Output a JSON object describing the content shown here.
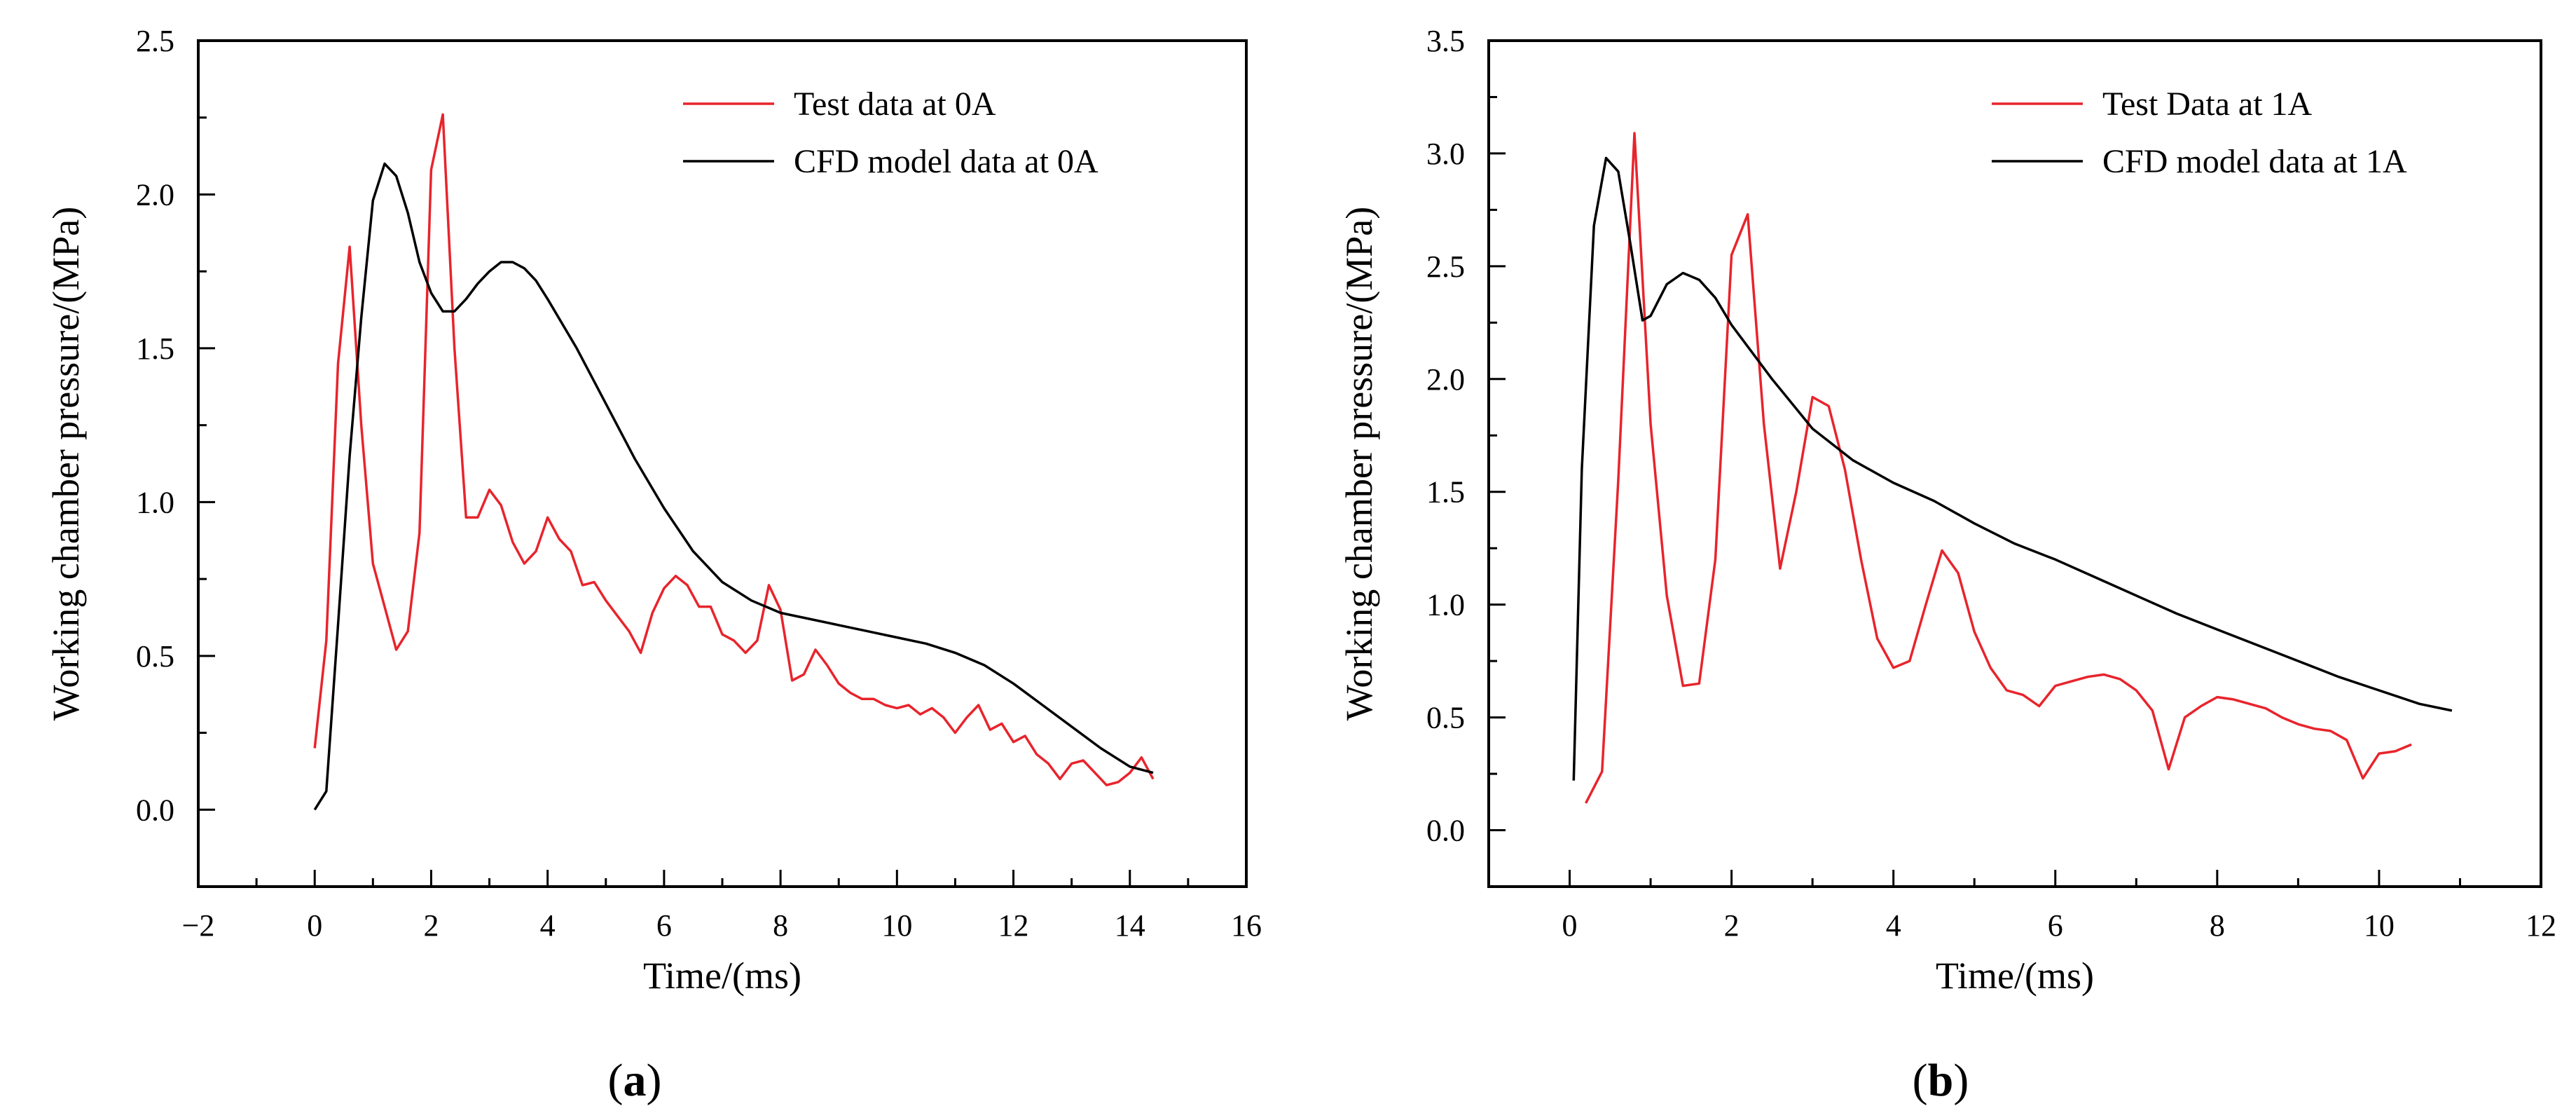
{
  "chart_data": [
    {
      "type": "line",
      "panel_label": "a",
      "xlabel": "Time/(ms)",
      "ylabel": "Working chamber pressure/(MPa)",
      "xlim": [
        -2,
        16
      ],
      "ylim": [
        -0.25,
        2.5
      ],
      "xticks": [
        -2,
        0,
        2,
        4,
        6,
        8,
        10,
        12,
        14,
        16
      ],
      "yticks": [
        0.0,
        0.5,
        1.0,
        1.5,
        2.0,
        2.5
      ],
      "xtick_labels": [
        "−2",
        "0",
        "2",
        "4",
        "6",
        "8",
        "10",
        "12",
        "14",
        "16"
      ],
      "ytick_labels": [
        "0.0",
        "0.5",
        "1.0",
        "1.5",
        "2.0",
        "2.5"
      ],
      "legend_position": "top-right",
      "series": [
        {
          "name": "Test data at 0A",
          "color": "#e8242c",
          "x": [
            0.0,
            0.2,
            0.4,
            0.6,
            0.8,
            1.0,
            1.2,
            1.4,
            1.6,
            1.8,
            2.0,
            2.2,
            2.4,
            2.6,
            2.8,
            3.0,
            3.2,
            3.4,
            3.6,
            3.8,
            4.0,
            4.2,
            4.4,
            4.6,
            4.8,
            5.0,
            5.2,
            5.4,
            5.6,
            5.8,
            6.0,
            6.2,
            6.4,
            6.6,
            6.8,
            7.0,
            7.2,
            7.4,
            7.6,
            7.8,
            8.0,
            8.2,
            8.4,
            8.6,
            8.8,
            9.0,
            9.2,
            9.4,
            9.6,
            9.8,
            10.0,
            10.2,
            10.4,
            10.6,
            10.8,
            11.0,
            11.2,
            11.4,
            11.6,
            11.8,
            12.0,
            12.2,
            12.4,
            12.6,
            12.8,
            13.0,
            13.2,
            13.4,
            13.6,
            13.8,
            14.0,
            14.2,
            14.4
          ],
          "y": [
            0.2,
            0.55,
            1.45,
            1.83,
            1.25,
            0.8,
            0.66,
            0.52,
            0.58,
            0.9,
            2.08,
            2.26,
            1.5,
            0.95,
            0.95,
            1.04,
            0.99,
            0.87,
            0.8,
            0.84,
            0.95,
            0.88,
            0.84,
            0.73,
            0.74,
            0.68,
            0.63,
            0.58,
            0.51,
            0.64,
            0.72,
            0.76,
            0.73,
            0.66,
            0.66,
            0.57,
            0.55,
            0.51,
            0.55,
            0.73,
            0.65,
            0.42,
            0.44,
            0.52,
            0.47,
            0.41,
            0.38,
            0.36,
            0.36,
            0.34,
            0.33,
            0.34,
            0.31,
            0.33,
            0.3,
            0.25,
            0.3,
            0.34,
            0.26,
            0.28,
            0.22,
            0.24,
            0.18,
            0.15,
            0.1,
            0.15,
            0.16,
            0.12,
            0.08,
            0.09,
            0.12,
            0.17,
            0.1
          ]
        },
        {
          "name": "CFD model data at 0A",
          "color": "#000000",
          "x": [
            0.0,
            0.2,
            0.4,
            0.6,
            0.8,
            1.0,
            1.2,
            1.4,
            1.6,
            1.8,
            2.0,
            2.2,
            2.4,
            2.6,
            2.8,
            3.0,
            3.2,
            3.4,
            3.6,
            3.8,
            4.0,
            4.5,
            5.0,
            5.5,
            6.0,
            6.5,
            7.0,
            7.5,
            8.0,
            8.5,
            9.0,
            9.5,
            10.0,
            10.5,
            11.0,
            11.5,
            12.0,
            12.5,
            13.0,
            13.5,
            14.0,
            14.4
          ],
          "y": [
            0.0,
            0.06,
            0.6,
            1.15,
            1.6,
            1.98,
            2.1,
            2.06,
            1.94,
            1.78,
            1.68,
            1.62,
            1.62,
            1.66,
            1.71,
            1.75,
            1.78,
            1.78,
            1.76,
            1.72,
            1.66,
            1.5,
            1.32,
            1.14,
            0.98,
            0.84,
            0.74,
            0.68,
            0.64,
            0.62,
            0.6,
            0.58,
            0.56,
            0.54,
            0.51,
            0.47,
            0.41,
            0.34,
            0.27,
            0.2,
            0.14,
            0.12
          ]
        }
      ]
    },
    {
      "type": "line",
      "panel_label": "b",
      "xlabel": "Time/(ms)",
      "ylabel": "Working chamber pressure/(MPa)",
      "xlim": [
        -1,
        12
      ],
      "ylim": [
        -0.25,
        3.5
      ],
      "xticks": [
        0,
        2,
        4,
        6,
        8,
        10,
        12
      ],
      "yticks": [
        0.0,
        0.5,
        1.0,
        1.5,
        2.0,
        2.5,
        3.0,
        3.5
      ],
      "xtick_labels": [
        "0",
        "2",
        "4",
        "6",
        "8",
        "10",
        "12"
      ],
      "ytick_labels": [
        "0.0",
        "0.5",
        "1.0",
        "1.5",
        "2.0",
        "2.5",
        "3.0",
        "3.5"
      ],
      "legend_position": "top-right",
      "series": [
        {
          "name": "Test Data at 1A",
          "color": "#e8242c",
          "x": [
            0.2,
            0.4,
            0.6,
            0.8,
            1.0,
            1.2,
            1.4,
            1.6,
            1.8,
            2.0,
            2.2,
            2.4,
            2.6,
            2.8,
            3.0,
            3.2,
            3.4,
            3.6,
            3.8,
            4.0,
            4.2,
            4.4,
            4.6,
            4.8,
            5.0,
            5.2,
            5.4,
            5.6,
            5.8,
            6.0,
            6.2,
            6.4,
            6.6,
            6.8,
            7.0,
            7.2,
            7.4,
            7.6,
            7.8,
            8.0,
            8.2,
            8.4,
            8.6,
            8.8,
            9.0,
            9.2,
            9.4,
            9.6,
            9.8,
            10.0,
            10.2,
            10.4
          ],
          "y": [
            0.12,
            0.26,
            1.55,
            3.09,
            1.8,
            1.04,
            0.64,
            0.65,
            1.2,
            2.55,
            2.73,
            1.8,
            1.16,
            1.5,
            1.92,
            1.88,
            1.6,
            1.2,
            0.85,
            0.72,
            0.75,
            1.0,
            1.24,
            1.14,
            0.88,
            0.72,
            0.62,
            0.6,
            0.55,
            0.64,
            0.66,
            0.68,
            0.69,
            0.67,
            0.62,
            0.53,
            0.27,
            0.5,
            0.55,
            0.59,
            0.58,
            0.56,
            0.54,
            0.5,
            0.47,
            0.45,
            0.44,
            0.4,
            0.23,
            0.34,
            0.35,
            0.38
          ]
        },
        {
          "name": "CFD model data at 1A",
          "color": "#000000",
          "x": [
            0.05,
            0.15,
            0.3,
            0.45,
            0.6,
            0.75,
            0.9,
            1.0,
            1.2,
            1.4,
            1.6,
            1.8,
            2.0,
            2.5,
            3.0,
            3.5,
            4.0,
            4.5,
            5.0,
            5.5,
            6.0,
            6.5,
            7.0,
            7.5,
            8.0,
            8.5,
            9.0,
            9.5,
            10.0,
            10.5,
            10.9
          ],
          "y": [
            0.22,
            1.6,
            2.68,
            2.98,
            2.92,
            2.6,
            2.26,
            2.28,
            2.42,
            2.47,
            2.44,
            2.36,
            2.24,
            2.0,
            1.78,
            1.64,
            1.54,
            1.46,
            1.36,
            1.27,
            1.2,
            1.12,
            1.04,
            0.96,
            0.89,
            0.82,
            0.75,
            0.68,
            0.62,
            0.56,
            0.53
          ]
        }
      ]
    }
  ]
}
